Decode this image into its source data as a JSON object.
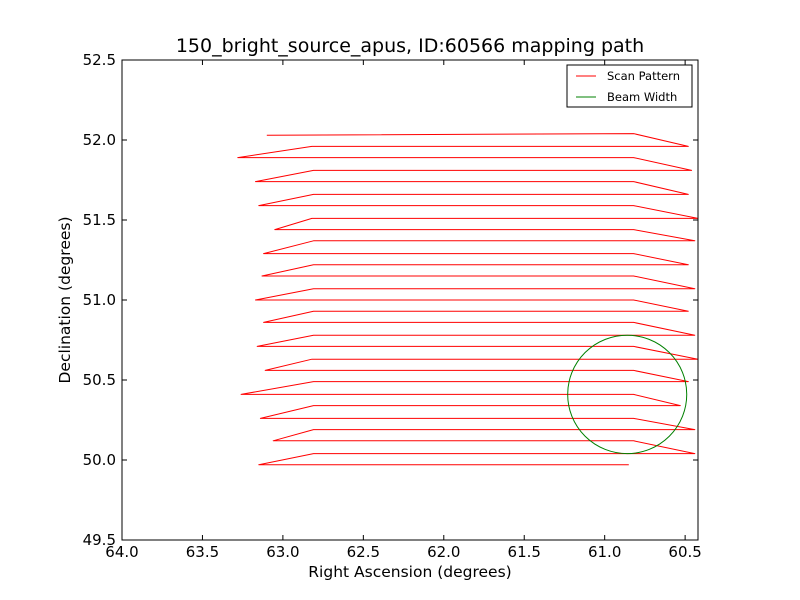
{
  "chart_data": {
    "type": "line",
    "title": "150_bright_source_apus, ID:60566 mapping path",
    "xlabel": "Right Ascension (degrees)",
    "ylabel": "Declination (degrees)",
    "xlim": [
      64.0,
      60.42
    ],
    "ylim": [
      49.5,
      52.5
    ],
    "x_inverted": true,
    "xticks": [
      "64.0",
      "63.5",
      "63.0",
      "62.5",
      "62.0",
      "61.5",
      "61.0",
      "60.5"
    ],
    "yticks": [
      "49.5",
      "50.0",
      "50.5",
      "51.0",
      "51.5",
      "52.0",
      "52.5"
    ],
    "grid": false,
    "legend_position": "top-right",
    "series": [
      {
        "name": "Scan Pattern",
        "color": "#ff0000",
        "x": [
          63.1,
          60.82,
          60.48,
          62.82,
          63.28,
          60.82,
          60.46,
          62.81,
          63.17,
          60.82,
          60.48,
          62.81,
          63.15,
          60.82,
          60.42,
          62.82,
          63.05,
          60.82,
          60.44,
          62.81,
          63.12,
          60.82,
          60.48,
          62.81,
          63.13,
          60.82,
          60.44,
          62.81,
          63.17,
          60.82,
          60.48,
          62.81,
          63.12,
          60.82,
          60.44,
          62.81,
          63.16,
          60.82,
          60.42,
          62.82,
          63.11,
          60.82,
          60.48,
          62.81,
          63.26,
          60.82,
          60.53,
          62.81,
          63.14,
          60.82,
          60.44,
          62.81,
          63.06,
          60.82,
          60.44,
          62.81,
          63.15,
          60.85
        ],
        "y": [
          52.03,
          52.04,
          51.96,
          51.96,
          51.89,
          51.89,
          51.81,
          51.81,
          51.74,
          51.74,
          51.66,
          51.66,
          51.59,
          51.59,
          51.51,
          51.51,
          51.44,
          51.44,
          51.37,
          51.37,
          51.29,
          51.29,
          51.22,
          51.22,
          51.15,
          51.15,
          51.07,
          51.07,
          51.0,
          51.0,
          50.93,
          50.93,
          50.86,
          50.86,
          50.78,
          50.78,
          50.71,
          50.71,
          50.63,
          50.63,
          50.56,
          50.56,
          50.49,
          50.49,
          50.41,
          50.41,
          50.34,
          50.34,
          50.26,
          50.26,
          50.19,
          50.19,
          50.12,
          50.12,
          50.04,
          50.04,
          49.97,
          49.97
        ]
      },
      {
        "name": "Beam Width",
        "color": "#008000",
        "shape": "circle",
        "center": [
          60.86,
          50.41
        ],
        "radius_deg": 0.37
      }
    ]
  }
}
